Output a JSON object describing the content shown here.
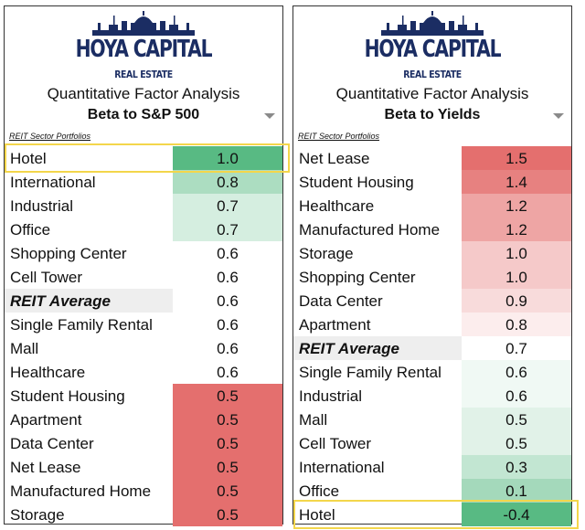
{
  "brand": {
    "name": "HOYA CAPITAL",
    "sub": "REAL ESTATE"
  },
  "panels": [
    {
      "title": "Quantitative Factor Analysis",
      "subtitle": "Beta to S&P 500",
      "section_label": "REIT Sector Portfolios",
      "highlighted_row": "Hotel"
    },
    {
      "title": "Quantitative Factor Analysis",
      "subtitle": "Beta to Yields",
      "section_label": "REIT Sector Portfolios",
      "highlighted_row": "Hotel"
    }
  ],
  "chart_data": [
    {
      "type": "table",
      "title": "Beta to S&P 500",
      "categories": [
        "Hotel",
        "International",
        "Industrial",
        "Office",
        "Shopping Center",
        "Cell Tower",
        "REIT Average",
        "Single Family Rental",
        "Mall",
        "Healthcare",
        "Student Housing",
        "Apartment",
        "Data Center",
        "Net Lease",
        "Manufactured Home",
        "Storage"
      ],
      "values": [
        "1.0",
        "0.8",
        "0.7",
        "0.7",
        "0.6",
        "0.6",
        "0.6",
        "0.6",
        "0.6",
        "0.6",
        "0.5",
        "0.5",
        "0.5",
        "0.5",
        "0.5",
        "0.5"
      ],
      "color_scale": {
        "low": "#e46f6e",
        "mid": "#ffffff",
        "high": "#58ba83"
      }
    },
    {
      "type": "table",
      "title": "Beta to Yields",
      "categories": [
        "Net Lease",
        "Student Housing",
        "Healthcare",
        "Manufactured Home",
        "Storage",
        "Shopping Center",
        "Data Center",
        "Apartment",
        "REIT Average",
        "Single Family Rental",
        "Industrial",
        "Mall",
        "Cell Tower",
        "International",
        "Office",
        "Hotel"
      ],
      "values": [
        "1.5",
        "1.4",
        "1.2",
        "1.2",
        "1.0",
        "1.0",
        "0.9",
        "0.8",
        "0.7",
        "0.6",
        "0.6",
        "0.5",
        "0.5",
        "0.3",
        "0.1",
        "-0.4"
      ],
      "color_scale": {
        "low": "#58ba83",
        "mid": "#ffffff",
        "high": "#e46f6e"
      }
    }
  ]
}
